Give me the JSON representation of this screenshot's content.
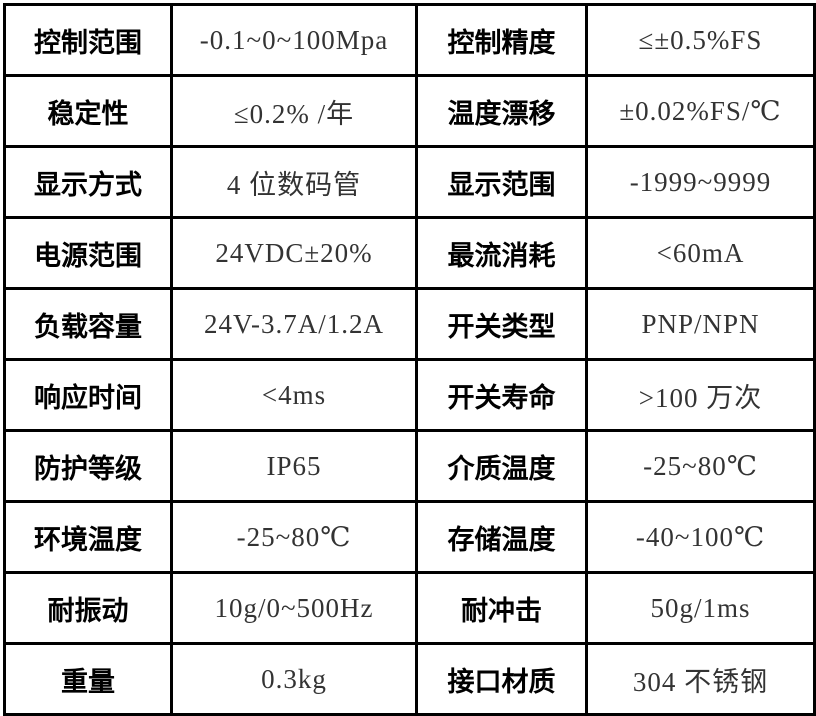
{
  "rows": [
    {
      "k1": "控制范围",
      "v1": "-0.1~0~100Mpa",
      "k2": "控制精度",
      "v2": "≤±0.5%FS"
    },
    {
      "k1": "稳定性",
      "v1": "≤0.2% /年",
      "k2": "温度漂移",
      "v2": "±0.02%FS/℃"
    },
    {
      "k1": "显示方式",
      "v1": "4 位数码管",
      "k2": "显示范围",
      "v2": "-1999~9999"
    },
    {
      "k1": "电源范围",
      "v1": "24VDC±20%",
      "k2": "最流消耗",
      "v2": "<60mA"
    },
    {
      "k1": "负载容量",
      "v1": "24V-3.7A/1.2A",
      "k2": "开关类型",
      "v2": "PNP/NPN"
    },
    {
      "k1": "响应时间",
      "v1": "<4ms",
      "k2": "开关寿命",
      "v2": ">100 万次"
    },
    {
      "k1": "防护等级",
      "v1": "IP65",
      "k2": "介质温度",
      "v2": "-25~80℃"
    },
    {
      "k1": "环境温度",
      "v1": "-25~80℃",
      "k2": "存储温度",
      "v2": "-40~100℃"
    },
    {
      "k1": "耐振动",
      "v1": "10g/0~500Hz",
      "k2": "耐冲击",
      "v2": "50g/1ms"
    },
    {
      "k1": "重量",
      "v1": "0.3kg",
      "k2": "接口材质",
      "v2": "304 不锈钢"
    }
  ]
}
